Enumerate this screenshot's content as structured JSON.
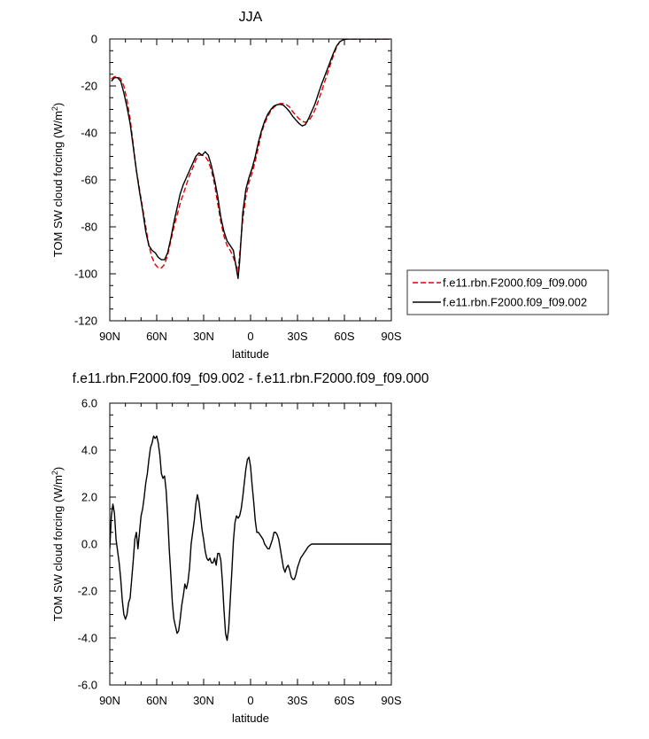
{
  "chart_data": [
    {
      "type": "line",
      "title": "JJA",
      "xlabel": "latitude",
      "ylabel": "TOM SW cloud forcing (W/m",
      "ylabel_sup": "2",
      "ylabel_end": ")",
      "xlim": [
        90,
        -90
      ],
      "ylim": [
        -120,
        0
      ],
      "xticks": [
        90,
        60,
        30,
        0,
        -30,
        -60,
        -90
      ],
      "xtick_labels": [
        "90N",
        "60N",
        "30N",
        "0",
        "30S",
        "60S",
        "90S"
      ],
      "yticks": [
        0,
        -20,
        -40,
        -60,
        -80,
        -100,
        -120
      ],
      "ytick_labels": [
        "0",
        "-20",
        "-40",
        "-60",
        "-80",
        "-100",
        "-120"
      ],
      "legend_position": "right",
      "series": [
        {
          "name": "f.e11.rbn.F2000.f09_f09.000",
          "color": "#e00000",
          "dash": "dashed",
          "x": [
            89,
            87,
            85,
            83,
            81,
            79,
            77,
            75,
            73,
            71,
            69,
            67,
            65,
            63,
            61,
            59,
            57,
            55,
            53,
            51,
            49,
            47,
            45,
            43,
            41,
            39,
            37,
            35,
            33,
            31,
            29,
            27,
            25,
            23,
            21,
            19,
            17,
            15,
            13,
            11,
            9,
            8,
            7,
            5,
            3,
            1,
            -1,
            -3,
            -5,
            -7,
            -9,
            -11,
            -13,
            -15,
            -17,
            -19,
            -21,
            -23,
            -25,
            -27,
            -29,
            -31,
            -33,
            -35,
            -37,
            -39,
            -41,
            -43,
            -45,
            -47,
            -49,
            -51,
            -53,
            -55,
            -57,
            -59,
            -61,
            -63,
            -65,
            -67,
            -69,
            -71,
            -75,
            -80,
            -85,
            -89
          ],
          "y": [
            -17,
            -16,
            -16,
            -17,
            -20,
            -26,
            -34,
            -45,
            -56,
            -64,
            -72,
            -80,
            -88,
            -93,
            -96,
            -97.5,
            -97.5,
            -96,
            -92,
            -86,
            -80,
            -75,
            -70,
            -66,
            -62,
            -58,
            -55,
            -51.5,
            -49.5,
            -49.5,
            -50,
            -52,
            -56,
            -62,
            -70,
            -78,
            -84,
            -88,
            -90,
            -93,
            -97,
            -99,
            -92,
            -77,
            -67,
            -61,
            -57,
            -52,
            -46,
            -40,
            -36,
            -33,
            -30.5,
            -29,
            -28,
            -27.5,
            -27.5,
            -28,
            -29,
            -31,
            -32.5,
            -34,
            -35,
            -35.5,
            -35,
            -33,
            -30.5,
            -27,
            -23,
            -19,
            -15,
            -11,
            -7,
            -3.5,
            -1.2,
            -0.3,
            0,
            0,
            0,
            0,
            0,
            0,
            0,
            0,
            0,
            0
          ]
        },
        {
          "name": "f.e11.rbn.F2000.f09_f09.002",
          "color": "#000000",
          "dash": "solid",
          "x": [
            89,
            87,
            85,
            83,
            81,
            79,
            77,
            75,
            73,
            71,
            69,
            67,
            65,
            63,
            61,
            59,
            57,
            55,
            53,
            51,
            49,
            47,
            45,
            43,
            41,
            39,
            37,
            35,
            33,
            31,
            29,
            27,
            25,
            23,
            21,
            19,
            17,
            15,
            13,
            11,
            9,
            8,
            7,
            5,
            3,
            1,
            -1,
            -3,
            -5,
            -7,
            -9,
            -11,
            -13,
            -15,
            -17,
            -19,
            -21,
            -23,
            -25,
            -27,
            -29,
            -31,
            -33,
            -35,
            -37,
            -39,
            -41,
            -43,
            -45,
            -47,
            -49,
            -51,
            -53,
            -55,
            -57,
            -59,
            -61,
            -63,
            -65,
            -67,
            -69,
            -71,
            -75,
            -80,
            -85,
            -89
          ],
          "y": [
            -18,
            -16.5,
            -16.5,
            -18,
            -23,
            -29,
            -36,
            -46,
            -56,
            -65,
            -73,
            -82,
            -88,
            -90,
            -91,
            -93,
            -94,
            -94,
            -91,
            -85,
            -78,
            -72,
            -66,
            -62,
            -59,
            -56,
            -53,
            -50,
            -48.5,
            -49.5,
            -48,
            -49.5,
            -54,
            -60,
            -67,
            -76,
            -82,
            -86,
            -88,
            -90,
            -98,
            -102,
            -95,
            -74,
            -64,
            -59,
            -55,
            -50,
            -44,
            -39,
            -35,
            -32,
            -30,
            -28.5,
            -28,
            -27.8,
            -28.2,
            -29.5,
            -31,
            -33,
            -34.5,
            -36,
            -37,
            -36.5,
            -34,
            -31,
            -28,
            -24,
            -20,
            -16.5,
            -13,
            -9.5,
            -6,
            -3,
            -1.2,
            -0.4,
            -0.1,
            0,
            0,
            0,
            0,
            0,
            0,
            0,
            0,
            0
          ]
        }
      ]
    },
    {
      "type": "line",
      "title": "f.e11.rbn.F2000.f09_f09.002 - f.e11.rbn.F2000.f09_f09.000",
      "xlabel": "latitude",
      "ylabel": "TOM SW cloud forcing (W/m",
      "ylabel_sup": "2",
      "ylabel_end": ")",
      "xlim": [
        90,
        -90
      ],
      "ylim": [
        -6,
        6
      ],
      "xticks": [
        90,
        60,
        30,
        0,
        -30,
        -60,
        -90
      ],
      "xtick_labels": [
        "90N",
        "60N",
        "30N",
        "0",
        "30S",
        "60S",
        "90S"
      ],
      "yticks": [
        6,
        4,
        2,
        0,
        -2,
        -4,
        -6
      ],
      "ytick_labels": [
        "6.0",
        "4.0",
        "2.0",
        "0.0",
        "-2.0",
        "-4.0",
        "-6.0"
      ],
      "series": [
        {
          "color": "#000000",
          "dash": "solid",
          "x": [
            90,
            89,
            88,
            87,
            86,
            85,
            84,
            83,
            82,
            81,
            80,
            79,
            78,
            77,
            76,
            75,
            74,
            73,
            72,
            71,
            70,
            69,
            68,
            67,
            66,
            65,
            64,
            63,
            62,
            61,
            60,
            59,
            58,
            57,
            56,
            55,
            54,
            53,
            52,
            51,
            50,
            49,
            48,
            47,
            46,
            45,
            44,
            43,
            42,
            41,
            40,
            39,
            38,
            37,
            36,
            35,
            34,
            33,
            32,
            31,
            30,
            29,
            28,
            27,
            26,
            25,
            24,
            23,
            22,
            21,
            20,
            19,
            18,
            17,
            16,
            15,
            14,
            13,
            12,
            11,
            10,
            9,
            8,
            7,
            6,
            5,
            4,
            3,
            2,
            1,
            0,
            -1,
            -2,
            -3,
            -4,
            -5,
            -6,
            -7,
            -8,
            -9,
            -10,
            -11,
            -12,
            -13,
            -14,
            -15,
            -16,
            -17,
            -18,
            -19,
            -20,
            -21,
            -22,
            -23,
            -24,
            -25,
            -26,
            -27,
            -28,
            -29,
            -30,
            -31,
            -32,
            -33,
            -34,
            -35,
            -36,
            -37,
            -38,
            -39,
            -40,
            -41,
            -42,
            -43,
            -44,
            -45,
            -46,
            -47,
            -48,
            -49,
            -50,
            -51,
            -52,
            -53,
            -54,
            -55,
            -56,
            -57,
            -58,
            -59,
            -60,
            -61,
            -62,
            -63,
            -64,
            -65,
            -66,
            -67,
            -68,
            -69,
            -70,
            -75,
            -80,
            -85,
            -90
          ],
          "y": [
            -0.2,
            1.2,
            1.7,
            1.3,
            0.2,
            -0.3,
            -0.8,
            -1.5,
            -2.4,
            -3.0,
            -3.2,
            -3.0,
            -2.5,
            -2.3,
            -1.5,
            -0.7,
            0.2,
            0.5,
            -0.2,
            0.5,
            1.2,
            1.5,
            2.0,
            2.6,
            3.0,
            3.6,
            4.1,
            4.3,
            4.6,
            4.5,
            4.6,
            4.3,
            3.8,
            3.0,
            2.8,
            2.9,
            2.3,
            1.2,
            -0.2,
            -1.3,
            -2.5,
            -3.2,
            -3.5,
            -3.8,
            -3.7,
            -3.2,
            -2.6,
            -2.2,
            -1.7,
            -1.9,
            -1.6,
            -1.0,
            0.0,
            0.5,
            1.0,
            1.7,
            2.1,
            1.8,
            1.2,
            0.6,
            0.2,
            -0.3,
            -0.6,
            -0.7,
            -0.6,
            -0.8,
            -0.8,
            -0.6,
            -0.9,
            -0.4,
            -0.4,
            -0.7,
            -1.6,
            -2.8,
            -3.8,
            -4.1,
            -3.6,
            -2.4,
            -1.2,
            0.1,
            0.9,
            1.2,
            1.1,
            1.2,
            1.5,
            2.0,
            2.6,
            3.2,
            3.6,
            3.7,
            3.3,
            2.5,
            1.8,
            1.0,
            0.5,
            0.5,
            0.4,
            0.3,
            0.2,
            0.0,
            -0.1,
            -0.2,
            -0.2,
            0.0,
            0.2,
            0.5,
            0.5,
            0.4,
            0.2,
            -0.2,
            -0.6,
            -1.0,
            -1.2,
            -1.0,
            -0.9,
            -1.1,
            -1.4,
            -1.5,
            -1.5,
            -1.3,
            -1.0,
            -0.8,
            -0.6,
            -0.5,
            -0.4,
            -0.3,
            -0.2,
            -0.1,
            -0.05,
            0.0,
            0.0,
            0.0,
            0.0,
            0.0,
            0.0,
            0.0,
            0.0,
            0.0,
            0.0,
            0.0,
            0.0,
            0.0,
            0.0,
            0.0,
            0.0,
            0.0,
            0.0,
            0.0,
            0.0,
            0.0,
            0.0,
            0.0,
            0.0,
            0.0,
            0.0,
            0.0,
            0.0,
            0.0,
            0.0,
            0.0,
            0.0,
            0.0,
            0.0,
            0.0,
            0.0
          ]
        }
      ]
    }
  ]
}
